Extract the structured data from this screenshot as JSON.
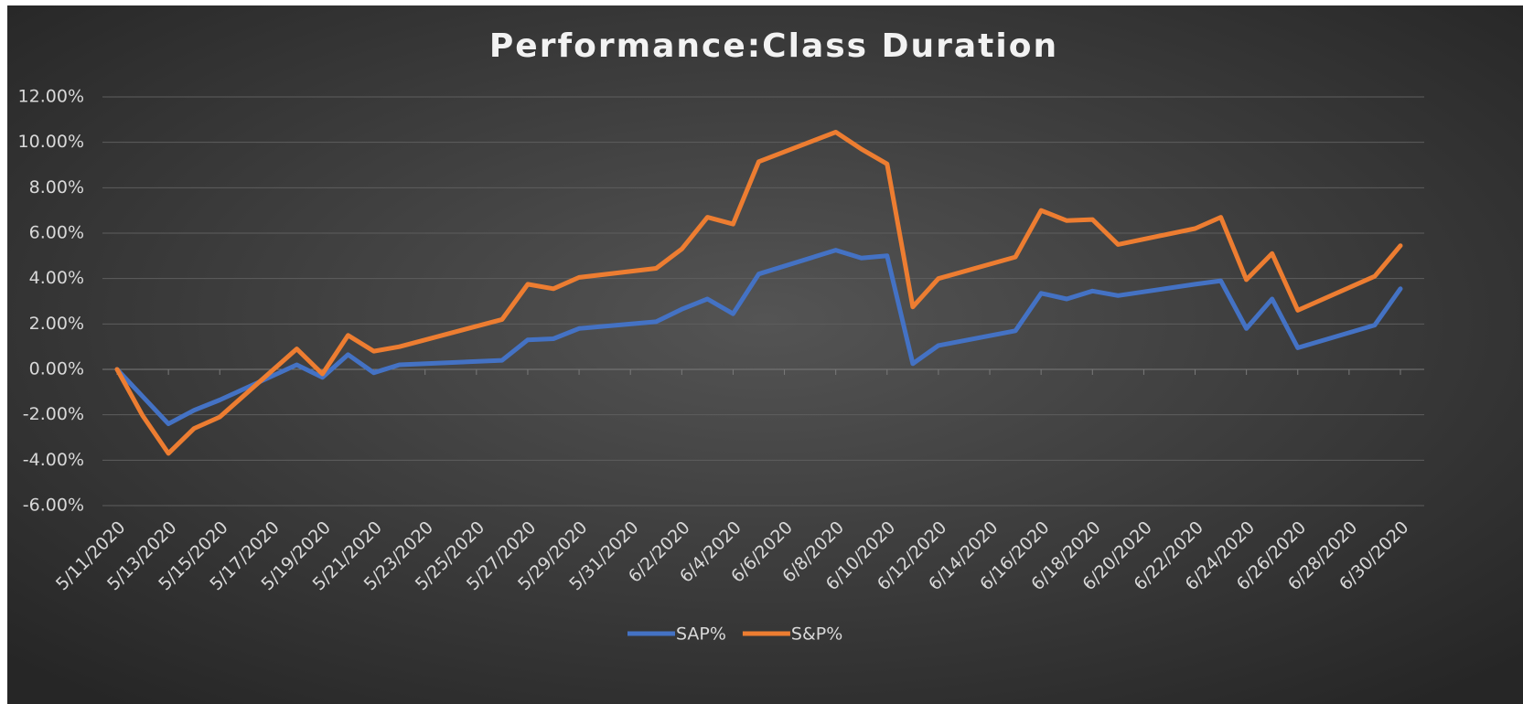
{
  "chart_data": {
    "type": "line",
    "title": "Performance:Class Duration",
    "x": [
      "5/11/2020",
      "5/12/2020",
      "5/13/2020",
      "5/14/2020",
      "5/15/2020",
      "5/18/2020",
      "5/19/2020",
      "5/20/2020",
      "5/21/2020",
      "5/22/2020",
      "5/26/2020",
      "5/27/2020",
      "5/28/2020",
      "5/29/2020",
      "6/1/2020",
      "6/2/2020",
      "6/3/2020",
      "6/4/2020",
      "6/5/2020",
      "6/8/2020",
      "6/9/2020",
      "6/10/2020",
      "6/11/2020",
      "6/12/2020",
      "6/15/2020",
      "6/16/2020",
      "6/17/2020",
      "6/18/2020",
      "6/19/2020",
      "6/22/2020",
      "6/23/2020",
      "6/24/2020",
      "6/25/2020",
      "6/26/2020",
      "6/29/2020",
      "6/30/2020"
    ],
    "series": [
      {
        "name": "SAP%",
        "color": "#4472c4",
        "values": [
          0,
          -1.2,
          -2.4,
          -1.8,
          -1.35,
          0.2,
          -0.35,
          0.65,
          -0.15,
          0.2,
          0.4,
          1.3,
          1.35,
          1.8,
          2.1,
          2.65,
          3.1,
          2.45,
          4.2,
          5.25,
          4.9,
          5.0,
          0.25,
          1.05,
          1.7,
          3.35,
          3.1,
          3.45,
          3.25,
          3.75,
          3.9,
          1.8,
          3.1,
          0.95,
          1.95,
          3.55
        ]
      },
      {
        "name": "S&P%",
        "color": "#ed7d31",
        "values": [
          0,
          -2.05,
          -3.7,
          -2.6,
          -2.1,
          0.9,
          -0.2,
          1.5,
          0.8,
          1.0,
          2.2,
          3.75,
          3.55,
          4.05,
          4.45,
          5.3,
          6.7,
          6.4,
          9.15,
          10.45,
          9.7,
          9.05,
          2.75,
          4.0,
          4.95,
          7.0,
          6.55,
          6.6,
          5.5,
          6.2,
          6.7,
          3.95,
          5.1,
          2.6,
          4.1,
          5.45
        ]
      }
    ],
    "xlim": [
      "5/11/2020",
      "6/30/2020"
    ],
    "xticks": [
      "5/11/2020",
      "5/13/2020",
      "5/15/2020",
      "5/17/2020",
      "5/19/2020",
      "5/21/2020",
      "5/23/2020",
      "5/25/2020",
      "5/27/2020",
      "5/29/2020",
      "5/31/2020",
      "6/2/2020",
      "6/4/2020",
      "6/6/2020",
      "6/8/2020",
      "6/10/2020",
      "6/12/2020",
      "6/14/2020",
      "6/16/2020",
      "6/18/2020",
      "6/20/2020",
      "6/22/2020",
      "6/24/2020",
      "6/26/2020",
      "6/28/2020",
      "6/30/2020"
    ],
    "ylim": [
      -6,
      12
    ],
    "yticks": [
      {
        "value": -6,
        "label": "-6.00%"
      },
      {
        "value": -4,
        "label": "-4.00%"
      },
      {
        "value": -2,
        "label": "-2.00%"
      },
      {
        "value": 0,
        "label": "0.00%"
      },
      {
        "value": 2,
        "label": "2.00%"
      },
      {
        "value": 4,
        "label": "4.00%"
      },
      {
        "value": 6,
        "label": "6.00%"
      },
      {
        "value": 8,
        "label": "8.00%"
      },
      {
        "value": 10,
        "label": "10.00%"
      },
      {
        "value": 12,
        "label": "12.00%"
      }
    ],
    "grid": true,
    "legend": "bottom"
  }
}
